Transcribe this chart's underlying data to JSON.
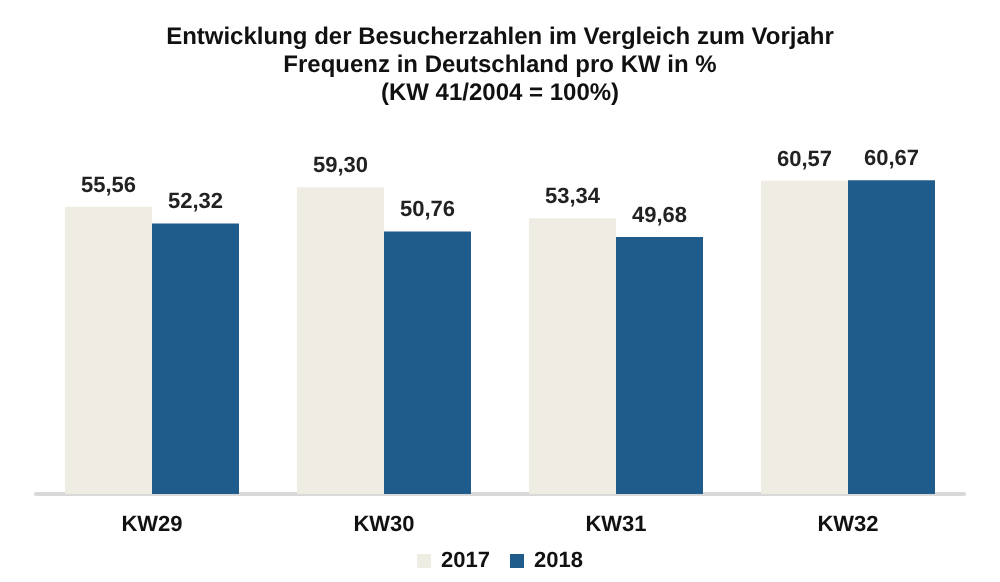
{
  "chart_data": {
    "type": "bar",
    "title": "Entwicklung der Besucherzahlen im Vergleich zum Vorjahr\nFrequenz in Deutschland pro KW in %\n(KW 41/2004 = 100%)",
    "categories": [
      "KW29",
      "KW30",
      "KW31",
      "KW32"
    ],
    "series": [
      {
        "name": "2017",
        "color": "#efece4",
        "values": [
          55.56,
          59.3,
          53.34,
          60.57
        ],
        "value_labels": [
          "55,56",
          "59,30",
          "53,34",
          "60,57"
        ]
      },
      {
        "name": "2018",
        "color": "#1f5b8b",
        "values": [
          52.32,
          50.76,
          49.68,
          60.67
        ],
        "value_labels": [
          "52,32",
          "50,76",
          "49,68",
          "60,67"
        ]
      }
    ],
    "tick_labels": "x",
    "grid": false,
    "legend": "bottom"
  }
}
